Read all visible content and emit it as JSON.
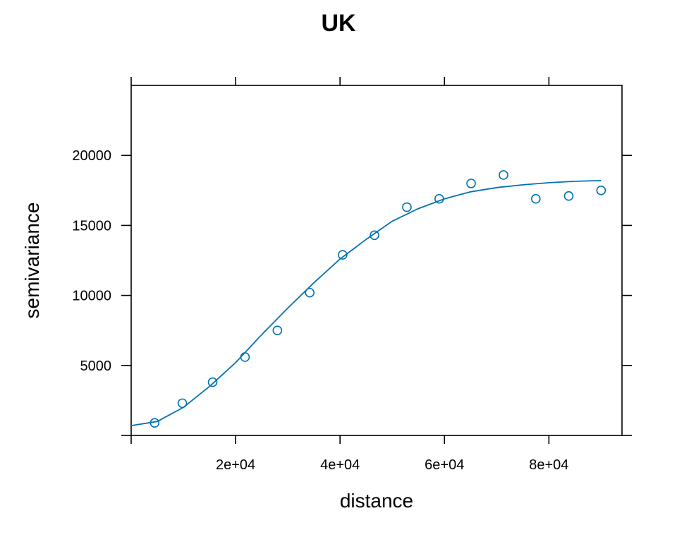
{
  "chart_data": {
    "type": "scatter",
    "title": "UK",
    "xlabel": "distance",
    "ylabel": "semivariance",
    "xlim": [
      0,
      94000
    ],
    "ylim": [
      0,
      25000
    ],
    "x_ticks": [
      20000,
      40000,
      60000,
      80000
    ],
    "x_tick_labels": [
      "2e+04",
      "4e+04",
      "6e+04",
      "8e+04"
    ],
    "y_ticks": [
      5000,
      10000,
      15000,
      20000
    ],
    "y_tick_labels": [
      "5000",
      "10000",
      "15000",
      "20000"
    ],
    "grid": false,
    "color": "#0072b2",
    "series": [
      {
        "kind": "points",
        "x": [
          4500,
          9800,
          15600,
          21800,
          28000,
          34200,
          40500,
          46600,
          52800,
          59000,
          65100,
          71300,
          77500,
          83800,
          90000
        ],
        "y": [
          900,
          2300,
          3800,
          5600,
          7500,
          10200,
          12900,
          14300,
          16300,
          16900,
          18000,
          18600,
          16900,
          17100,
          17500
        ]
      },
      {
        "kind": "fitted-curve",
        "x": [
          0,
          5000,
          10000,
          15000,
          20000,
          25000,
          30000,
          35000,
          40000,
          45000,
          50000,
          55000,
          60000,
          65000,
          70000,
          75000,
          80000,
          85000,
          90000
        ],
        "y": [
          700,
          1000,
          2000,
          3500,
          5200,
          7200,
          9100,
          10900,
          12600,
          14000,
          15300,
          16200,
          16900,
          17400,
          17700,
          17900,
          18050,
          18150,
          18200
        ]
      }
    ]
  }
}
